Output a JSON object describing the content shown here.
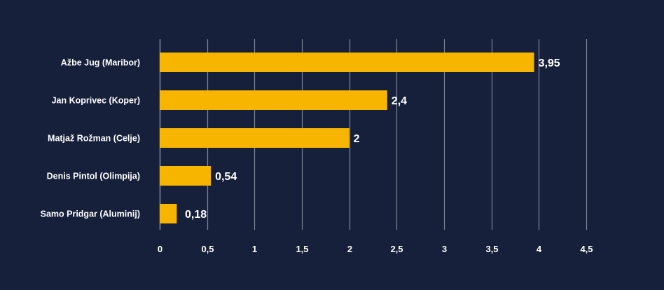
{
  "chart_data": {
    "type": "bar",
    "orientation": "horizontal",
    "categories": [
      "Ažbe Jug (Maribor)",
      "Jan Koprivec (Koper)",
      "Matjaž Rožman (Celje)",
      "Denis Pintol (Olimpija)",
      "Samo Pridgar (Aluminij)"
    ],
    "values": [
      3.95,
      2.4,
      2,
      0.54,
      0.18
    ],
    "value_labels": [
      "3,95",
      "2,4",
      "2",
      "0,54",
      "0,18"
    ],
    "xlim": [
      0,
      4.5
    ],
    "x_ticks": [
      0,
      0.5,
      1,
      1.5,
      2,
      2.5,
      3,
      3.5,
      4,
      4.5
    ],
    "x_tick_labels": [
      "0",
      "0,5",
      "1",
      "1,5",
      "2",
      "2,5",
      "3",
      "3,5",
      "4",
      "4,5"
    ],
    "grid": true,
    "legend": "none",
    "title": "",
    "xlabel": "",
    "ylabel": ""
  },
  "colors": {
    "background": "#17203a",
    "bar": "#f7b500",
    "grid": "#7d8597",
    "text": "#ffffff"
  }
}
